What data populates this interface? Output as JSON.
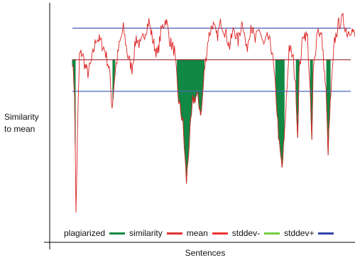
{
  "chart_data": {
    "type": "line",
    "title": "",
    "xlabel": "Sentences",
    "ylabel_lines": [
      "Similarity",
      "to mean"
    ],
    "ylim": [
      0,
      1
    ],
    "grid": false,
    "legend_position": "bottom-left",
    "colors": {
      "plagiarized": "#118844",
      "similarity": "#dd2222",
      "mean": "#992233",
      "stddev-": "#4466bb",
      "stddev+": "#3344aa",
      "axis": "#000000"
    },
    "legend": [
      {
        "label": "plagiarized",
        "color": "#118844"
      },
      {
        "label": "similarity",
        "color": "#dd3333"
      },
      {
        "label": "mean",
        "color": "#ee3333"
      },
      {
        "label": "stddev-",
        "color": "#77cc44"
      },
      {
        "label": "stddev+",
        "color": "#3344aa"
      }
    ],
    "reference_lines": {
      "mean": 0.76,
      "stddev_minus": 0.62,
      "stddev_plus": 0.9
    },
    "plagiarized_ranges": [
      [
        0,
        4
      ],
      [
        57,
        60
      ],
      [
        148,
        186
      ],
      [
        287,
        299
      ],
      [
        316,
        320
      ],
      [
        336,
        339
      ],
      [
        359,
        364
      ]
    ],
    "series": [
      {
        "name": "similarity",
        "x_count": 400,
        "values_from_profile": true
      }
    ],
    "profile": [
      [
        0,
        0.76
      ],
      [
        3,
        0.62
      ],
      [
        5,
        0.08
      ],
      [
        8,
        0.55
      ],
      [
        10,
        0.78
      ],
      [
        14,
        0.79
      ],
      [
        18,
        0.73
      ],
      [
        22,
        0.7
      ],
      [
        26,
        0.74
      ],
      [
        30,
        0.8
      ],
      [
        34,
        0.86
      ],
      [
        40,
        0.84
      ],
      [
        46,
        0.8
      ],
      [
        52,
        0.72
      ],
      [
        56,
        0.55
      ],
      [
        60,
        0.7
      ],
      [
        66,
        0.82
      ],
      [
        72,
        0.9
      ],
      [
        78,
        0.78
      ],
      [
        84,
        0.72
      ],
      [
        90,
        0.86
      ],
      [
        96,
        0.82
      ],
      [
        102,
        0.88
      ],
      [
        108,
        0.93
      ],
      [
        114,
        0.84
      ],
      [
        120,
        0.78
      ],
      [
        126,
        0.9
      ],
      [
        132,
        0.94
      ],
      [
        138,
        0.84
      ],
      [
        144,
        0.8
      ],
      [
        150,
        0.58
      ],
      [
        156,
        0.48
      ],
      [
        161,
        0.22
      ],
      [
        165,
        0.4
      ],
      [
        170,
        0.58
      ],
      [
        176,
        0.6
      ],
      [
        182,
        0.52
      ],
      [
        186,
        0.7
      ],
      [
        192,
        0.86
      ],
      [
        198,
        0.92
      ],
      [
        204,
        0.86
      ],
      [
        210,
        0.93
      ],
      [
        216,
        0.88
      ],
      [
        222,
        0.82
      ],
      [
        228,
        0.9
      ],
      [
        234,
        0.84
      ],
      [
        240,
        0.94
      ],
      [
        246,
        0.8
      ],
      [
        252,
        0.92
      ],
      [
        258,
        0.84
      ],
      [
        264,
        0.9
      ],
      [
        270,
        0.82
      ],
      [
        276,
        0.86
      ],
      [
        282,
        0.8
      ],
      [
        288,
        0.58
      ],
      [
        292,
        0.38
      ],
      [
        296,
        0.28
      ],
      [
        300,
        0.45
      ],
      [
        306,
        0.82
      ],
      [
        312,
        0.76
      ],
      [
        316,
        0.6
      ],
      [
        318,
        0.42
      ],
      [
        320,
        0.7
      ],
      [
        326,
        0.88
      ],
      [
        332,
        0.86
      ],
      [
        336,
        0.58
      ],
      [
        338,
        0.4
      ],
      [
        340,
        0.7
      ],
      [
        346,
        0.9
      ],
      [
        352,
        0.86
      ],
      [
        358,
        0.62
      ],
      [
        361,
        0.36
      ],
      [
        364,
        0.56
      ],
      [
        370,
        0.84
      ],
      [
        376,
        0.92
      ],
      [
        382,
        0.94
      ],
      [
        388,
        0.88
      ],
      [
        394,
        0.9
      ],
      [
        399,
        0.86
      ]
    ]
  }
}
